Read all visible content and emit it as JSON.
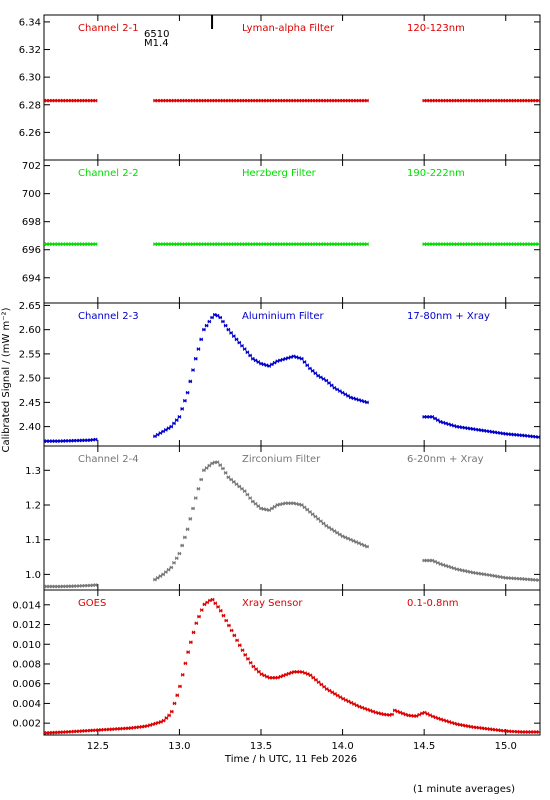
{
  "x_axis": {
    "label": "Time / h UTC, 11 Feb 2026",
    "range": [
      12.17,
      15.21
    ],
    "ticks": [
      "12.5",
      "13.0",
      "13.5",
      "14.0",
      "14.5",
      "15.0"
    ]
  },
  "y_axis_label": "Calibrated Signal / (mW m⁻²)",
  "footnote": "(1 minute averages)",
  "flare_marker": {
    "time": 13.2,
    "labels": [
      "6510",
      "M1.4"
    ]
  },
  "chart_data": [
    {
      "type": "scatter",
      "id": "channel-2-1",
      "title_left": "Channel 2-1",
      "title_center": "Lyman-alpha Filter",
      "title_right": "120-123nm",
      "color": "#dd0000",
      "ylim": [
        6.24,
        6.345
      ],
      "yticks": [
        "6.26",
        "6.28",
        "6.30",
        "6.32",
        "6.34"
      ],
      "segments": [
        {
          "x": [
            12.17,
            12.5
          ],
          "y": [
            6.283,
            6.283
          ]
        },
        {
          "x": [
            12.85,
            14.15
          ],
          "y": [
            6.283,
            6.283
          ]
        },
        {
          "x": [
            14.5,
            15.21
          ],
          "y": [
            6.283,
            6.283
          ]
        }
      ]
    },
    {
      "type": "scatter",
      "id": "channel-2-2",
      "title_left": "Channel 2-2",
      "title_center": "Herzberg Filter",
      "title_right": "190-222nm",
      "color": "#00dd00",
      "ylim": [
        692.2,
        702.4
      ],
      "yticks": [
        "694",
        "696",
        "698",
        "700",
        "702"
      ],
      "segments": [
        {
          "x": [
            12.17,
            12.5
          ],
          "y": [
            696.4,
            696.4
          ]
        },
        {
          "x": [
            12.85,
            14.15
          ],
          "y": [
            696.4,
            696.4
          ]
        },
        {
          "x": [
            14.5,
            15.21
          ],
          "y": [
            696.4,
            696.4
          ]
        }
      ]
    },
    {
      "type": "scatter",
      "id": "channel-2-3",
      "title_left": "Channel 2-3",
      "title_center": "Aluminium Filter",
      "title_right": "17-80nm + Xray",
      "title_right_sup": "",
      "color": "#0000cc",
      "ylim": [
        2.36,
        2.655
      ],
      "yticks": [
        "2.40",
        "2.45",
        "2.50",
        "2.55",
        "2.60",
        "2.65"
      ],
      "segments": [
        {
          "x": [
            12.17,
            12.25,
            12.35,
            12.45,
            12.5
          ],
          "y": [
            2.37,
            2.37,
            2.371,
            2.372,
            2.374
          ]
        },
        {
          "x": [
            12.85,
            12.9,
            12.95,
            13.0,
            13.05,
            13.1,
            13.15,
            13.2,
            13.22,
            13.25,
            13.3,
            13.35,
            13.4,
            13.45,
            13.5,
            13.55,
            13.6,
            13.65,
            13.7,
            13.75,
            13.8,
            13.85,
            13.9,
            13.95,
            14.0,
            14.05,
            14.1,
            14.15
          ],
          "y": [
            2.38,
            2.39,
            2.4,
            2.42,
            2.47,
            2.54,
            2.6,
            2.625,
            2.632,
            2.625,
            2.6,
            2.58,
            2.56,
            2.54,
            2.53,
            2.525,
            2.535,
            2.54,
            2.545,
            2.54,
            2.52,
            2.505,
            2.495,
            2.48,
            2.47,
            2.46,
            2.455,
            2.45
          ]
        },
        {
          "x": [
            14.5,
            14.55,
            14.6,
            14.7,
            14.8,
            14.9,
            15.0,
            15.1,
            15.21
          ],
          "y": [
            2.42,
            2.42,
            2.41,
            2.4,
            2.395,
            2.39,
            2.385,
            2.382,
            2.378
          ]
        }
      ]
    },
    {
      "type": "scatter",
      "id": "channel-2-4",
      "title_left": "Channel 2-4",
      "title_center": "Zirconium Filter",
      "title_right": "6-20nm + Xray",
      "color": "#777777",
      "ylim": [
        0.955,
        1.37
      ],
      "yticks": [
        "1.0",
        "1.1",
        "1.2",
        "1.3"
      ],
      "segments": [
        {
          "x": [
            12.17,
            12.25,
            12.35,
            12.45,
            12.5
          ],
          "y": [
            0.965,
            0.965,
            0.966,
            0.968,
            0.97
          ]
        },
        {
          "x": [
            12.85,
            12.9,
            12.95,
            13.0,
            13.05,
            13.1,
            13.15,
            13.2,
            13.23,
            13.26,
            13.3,
            13.35,
            13.4,
            13.45,
            13.5,
            13.55,
            13.6,
            13.65,
            13.7,
            13.75,
            13.8,
            13.85,
            13.9,
            13.95,
            14.0,
            14.05,
            14.1,
            14.15
          ],
          "y": [
            0.985,
            1.0,
            1.02,
            1.06,
            1.13,
            1.22,
            1.3,
            1.32,
            1.325,
            1.31,
            1.28,
            1.26,
            1.24,
            1.21,
            1.19,
            1.185,
            1.2,
            1.205,
            1.205,
            1.2,
            1.18,
            1.16,
            1.14,
            1.125,
            1.11,
            1.1,
            1.09,
            1.08
          ]
        },
        {
          "x": [
            14.5,
            14.55,
            14.6,
            14.7,
            14.8,
            14.9,
            15.0,
            15.1,
            15.21
          ],
          "y": [
            1.04,
            1.04,
            1.03,
            1.015,
            1.005,
            0.998,
            0.99,
            0.987,
            0.983
          ]
        }
      ]
    },
    {
      "type": "scatter",
      "id": "goes",
      "title_left": "GOES",
      "title_center": "Xray Sensor",
      "title_right": "0.1-0.8nm",
      "color": "#dd0000",
      "ylim": [
        0.0008,
        0.0155
      ],
      "yticks": [
        "0.002",
        "0.004",
        "0.006",
        "0.008",
        "0.010",
        "0.012",
        "0.014"
      ],
      "segments": [
        {
          "x": [
            12.17,
            12.3,
            12.5,
            12.7,
            12.8,
            12.9,
            12.95,
            13.0,
            13.05,
            13.1,
            13.15,
            13.2,
            13.25,
            13.3,
            13.35,
            13.4,
            13.45,
            13.5,
            13.55,
            13.6,
            13.65,
            13.7,
            13.75,
            13.8,
            13.85,
            13.9,
            14.0,
            14.1,
            14.2,
            14.25,
            14.3,
            14.32,
            14.35,
            14.4,
            14.45,
            14.5,
            14.55,
            14.6,
            14.7,
            14.8,
            14.9,
            15.0,
            15.1,
            15.21
          ],
          "y": [
            0.001,
            0.0011,
            0.0013,
            0.0015,
            0.0017,
            0.0022,
            0.003,
            0.0055,
            0.009,
            0.012,
            0.014,
            0.0146,
            0.0135,
            0.012,
            0.0105,
            0.009,
            0.0078,
            0.007,
            0.0066,
            0.0066,
            0.0069,
            0.0072,
            0.0072,
            0.0069,
            0.0062,
            0.0055,
            0.0045,
            0.0037,
            0.0031,
            0.0029,
            0.0028,
            0.0033,
            0.0031,
            0.0028,
            0.0027,
            0.0031,
            0.0027,
            0.0024,
            0.0019,
            0.0016,
            0.0014,
            0.0012,
            0.0011,
            0.0011
          ]
        }
      ]
    }
  ]
}
